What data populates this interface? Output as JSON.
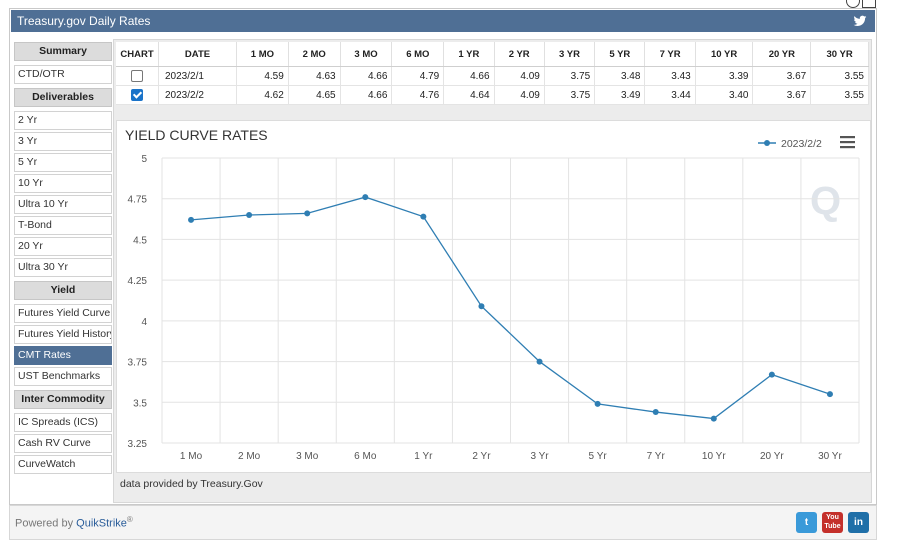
{
  "window": {
    "title": "Treasury.gov Daily Rates"
  },
  "sidebar": {
    "sections": [
      {
        "header": "Summary",
        "items": [
          "CTD/OTR"
        ]
      },
      {
        "header": "Deliverables",
        "items": [
          "2 Yr",
          "3 Yr",
          "5 Yr",
          "10 Yr",
          "Ultra 10 Yr",
          "T-Bond",
          "20 Yr",
          "Ultra 30 Yr"
        ]
      },
      {
        "header": "Yield",
        "items": [
          "Futures Yield Curve",
          "Futures Yield History",
          "CMT Rates",
          "UST Benchmarks"
        ]
      },
      {
        "header": "Inter Commodity",
        "items": [
          "IC Spreads (ICS)",
          "Cash RV Curve",
          "CurveWatch"
        ]
      }
    ],
    "active_item": "CMT Rates"
  },
  "table": {
    "headers": [
      "CHART",
      "DATE",
      "1 MO",
      "2 MO",
      "3 MO",
      "6 MO",
      "1 YR",
      "2 YR",
      "3 YR",
      "5 YR",
      "7 YR",
      "10 YR",
      "20 YR",
      "30 YR"
    ],
    "rows": [
      {
        "checked": false,
        "date": "2023/2/1",
        "values": [
          "4.59",
          "4.63",
          "4.66",
          "4.79",
          "4.66",
          "4.09",
          "3.75",
          "3.48",
          "3.43",
          "3.39",
          "3.67",
          "3.55"
        ]
      },
      {
        "checked": true,
        "date": "2023/2/2",
        "values": [
          "4.62",
          "4.65",
          "4.66",
          "4.76",
          "4.64",
          "4.09",
          "3.75",
          "3.49",
          "3.44",
          "3.40",
          "3.67",
          "3.55"
        ]
      }
    ]
  },
  "chart_data": {
    "type": "line",
    "title": "YIELD CURVE RATES",
    "categories": [
      "1 Mo",
      "2 Mo",
      "3 Mo",
      "6 Mo",
      "1 Yr",
      "2 Yr",
      "3 Yr",
      "5 Yr",
      "7 Yr",
      "10 Yr",
      "20 Yr",
      "30 Yr"
    ],
    "series": [
      {
        "name": "2023/2/2",
        "color": "#2f7eb3",
        "values": [
          4.62,
          4.65,
          4.66,
          4.76,
          4.64,
          4.09,
          3.75,
          3.49,
          3.44,
          3.4,
          3.67,
          3.55
        ]
      }
    ],
    "yticks": [
      "3.25",
      "3.5",
      "3.75",
      "4",
      "4.25",
      "4.5",
      "4.75",
      "5"
    ],
    "ylim": [
      3.25,
      5
    ],
    "grid": true,
    "legend": "top-right",
    "watermark": "Q"
  },
  "credit": "data provided by Treasury.Gov",
  "footer": {
    "powered_prefix": "Powered by ",
    "brand": "QuikStrike",
    "reg": "®",
    "social": [
      {
        "name": "twitter-icon",
        "label": "t",
        "color": "#3a9ad9"
      },
      {
        "name": "youtube-icon",
        "label": "You Tube",
        "color": "#c4302b"
      },
      {
        "name": "linkedin-icon",
        "label": "in",
        "color": "#1f6fa8"
      }
    ]
  },
  "colors": {
    "titlebar": "#4f6f95",
    "accent": "#2f7eb3"
  }
}
